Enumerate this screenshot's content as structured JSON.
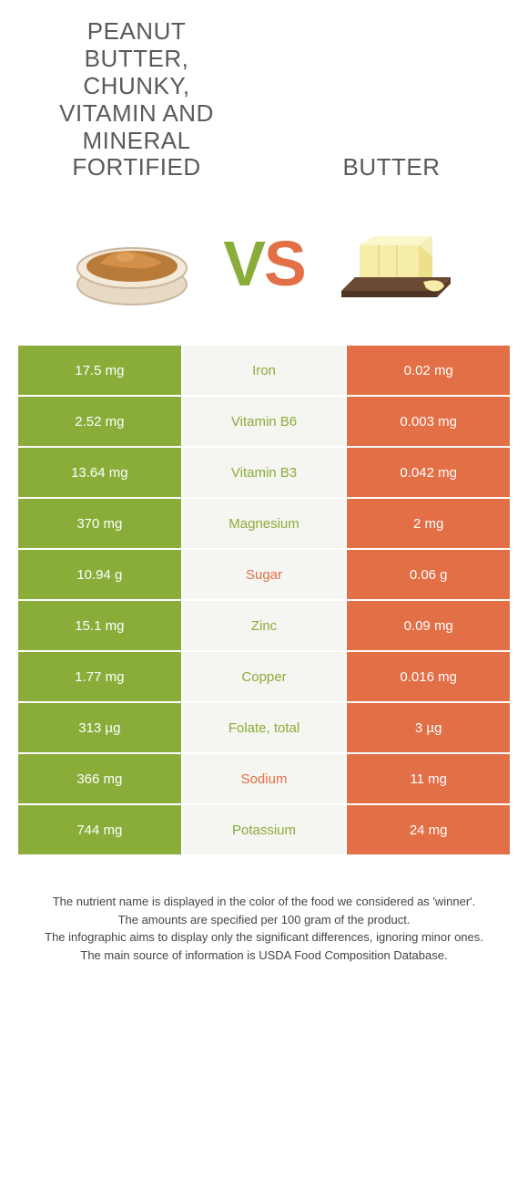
{
  "colors": {
    "left": "#8aad3a",
    "right": "#e36f47",
    "mid_bg": "#f5f5f1",
    "title": "#5a5a5a"
  },
  "header": {
    "left_title": "Peanut Butter, Chunky, Vitamin and Mineral Fortified",
    "right_title": "Butter",
    "vs_v": "V",
    "vs_s": "S"
  },
  "rows": [
    {
      "left": "17.5 mg",
      "mid": "Iron",
      "right": "0.02 mg",
      "winner": "left"
    },
    {
      "left": "2.52 mg",
      "mid": "Vitamin B6",
      "right": "0.003 mg",
      "winner": "left"
    },
    {
      "left": "13.64 mg",
      "mid": "Vitamin B3",
      "right": "0.042 mg",
      "winner": "left"
    },
    {
      "left": "370 mg",
      "mid": "Magnesium",
      "right": "2 mg",
      "winner": "left"
    },
    {
      "left": "10.94 g",
      "mid": "Sugar",
      "right": "0.06 g",
      "winner": "right"
    },
    {
      "left": "15.1 mg",
      "mid": "Zinc",
      "right": "0.09 mg",
      "winner": "left"
    },
    {
      "left": "1.77 mg",
      "mid": "Copper",
      "right": "0.016 mg",
      "winner": "left"
    },
    {
      "left": "313 µg",
      "mid": "Folate, total",
      "right": "3 µg",
      "winner": "left"
    },
    {
      "left": "366 mg",
      "mid": "Sodium",
      "right": "11 mg",
      "winner": "right"
    },
    {
      "left": "744 mg",
      "mid": "Potassium",
      "right": "24 mg",
      "winner": "left"
    }
  ],
  "footer": {
    "line1": "The nutrient name is displayed in the color of the food we considered as 'winner'.",
    "line2": "The amounts are specified per 100 gram of the product.",
    "line3": "The infographic aims to display only the significant differences, ignoring minor ones.",
    "line4": "The main source of information is USDA Food Composition Database."
  }
}
